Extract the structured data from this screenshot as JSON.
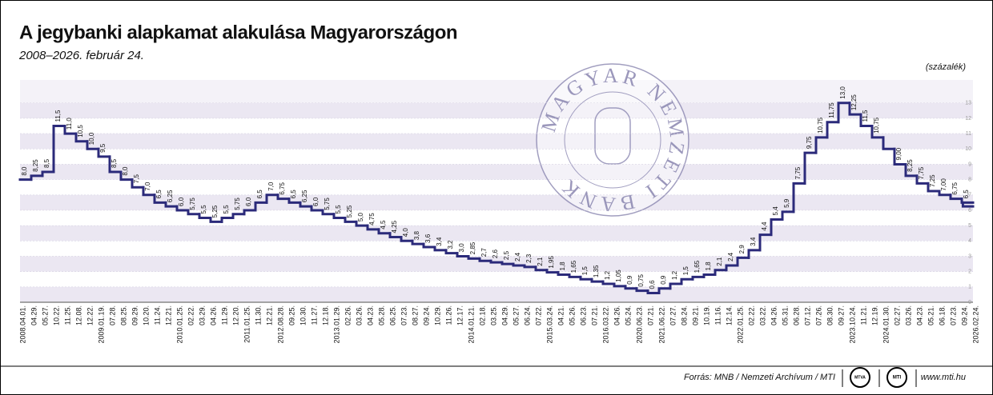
{
  "chart_data": {
    "type": "step",
    "title": "A jegybanki alapkamat alakulása Magyarországon",
    "subtitle": "2008–2026. február 24.",
    "unit_label": "(százalék)",
    "source": "Forrás: MNB / Nemzeti Archívum / MTI",
    "logos": [
      "MTVA",
      "MTI"
    ],
    "website": "www.mti.hu",
    "watermark": "MAGYAR NEMZETI BANK",
    "color": "#2b2a7a",
    "grid": true,
    "ylim": [
      0,
      14.5
    ],
    "yticks": [
      0,
      1,
      2,
      3,
      4,
      5,
      6,
      7,
      8,
      9,
      10,
      11,
      12,
      13
    ],
    "categories": [
      "2008.04.01.",
      "04.29.",
      "05.27.",
      "10.22.",
      "11.25.",
      "12.08.",
      "12.22.",
      "2009.01.19.",
      "07.28.",
      "08.25.",
      "09.29.",
      "10.20.",
      "11.24.",
      "12.21.",
      "2010.01.25.",
      "02.22.",
      "03.29.",
      "04.26.",
      "11.29.",
      "12.20.",
      "2011.01.25.",
      "11.30.",
      "12.21.",
      "2012.08.28.",
      "09.25.",
      "10.30.",
      "11.27.",
      "12.18.",
      "2013.01.29.",
      "02.26.",
      "03.26.",
      "04.23.",
      "05.28.",
      "06.25.",
      "07.23.",
      "08.27.",
      "09.24.",
      "10.29.",
      "11.26.",
      "12.17.",
      "2014.01.21.",
      "02.18.",
      "03.25.",
      "04.29.",
      "05.27.",
      "06.24.",
      "07.22.",
      "2015.03.24.",
      "04.21.",
      "05.26.",
      "06.23.",
      "07.21.",
      "2016.03.22.",
      "04.26.",
      "05.24.",
      "2020.06.23.",
      "07.21.",
      "2021.06.22.",
      "07.27.",
      "08.24.",
      "09.21.",
      "10.19.",
      "11.16.",
      "12.14.",
      "2022.01.25.",
      "02.22.",
      "03.22.",
      "04.26.",
      "05.31.",
      "06.28.",
      "07.12.",
      "07.26.",
      "08.30.",
      "09.27.",
      "2023.10.24.",
      "11.21.",
      "12.19.",
      "2024.01.30.",
      "02.27.",
      "03.26.",
      "04.23.",
      "05.21.",
      "06.18.",
      "07.23.",
      "09.24.",
      "2026.02.24."
    ],
    "values": [
      8.0,
      8.25,
      8.5,
      11.5,
      11.0,
      10.5,
      10.0,
      9.5,
      8.5,
      8.0,
      7.5,
      7.0,
      6.5,
      6.25,
      6.0,
      5.75,
      5.5,
      5.25,
      5.5,
      5.75,
      6.0,
      6.5,
      7.0,
      6.75,
      6.5,
      6.25,
      6.0,
      5.75,
      5.5,
      5.25,
      5.0,
      4.75,
      4.5,
      4.25,
      4.0,
      3.8,
      3.6,
      3.4,
      3.2,
      3.0,
      2.85,
      2.7,
      2.6,
      2.5,
      2.4,
      2.3,
      2.1,
      1.95,
      1.8,
      1.65,
      1.5,
      1.35,
      1.2,
      1.05,
      0.9,
      0.75,
      0.6,
      0.9,
      1.2,
      1.5,
      1.65,
      1.8,
      2.1,
      2.4,
      2.9,
      3.4,
      4.4,
      5.4,
      5.9,
      7.75,
      9.75,
      10.75,
      11.75,
      13.0,
      12.25,
      11.5,
      10.75,
      10.0,
      9.0,
      8.25,
      7.75,
      7.25,
      7.0,
      6.75,
      6.5,
      6.25
    ],
    "value_labels": [
      "8,0",
      "8,25",
      "8,5",
      "11,5",
      "11,0",
      "10,5",
      "10,0",
      "9,5",
      "8,5",
      "8,0",
      "7,5",
      "7,0",
      "6,5",
      "6,25",
      "6,0",
      "5,75",
      "5,5",
      "5,25",
      "5,5",
      "5,75",
      "6,0",
      "6,5",
      "7,0",
      "6,75",
      "6,5",
      "6,25",
      "6,0",
      "5,75",
      "5,5",
      "5,25",
      "5,0",
      "4,75",
      "4,5",
      "4,25",
      "4,0",
      "3,8",
      "3,6",
      "3,4",
      "3,2",
      "3,0",
      "2,85",
      "2,7",
      "2,6",
      "2,5",
      "2,4",
      "2,3",
      "2,1",
      "1,95",
      "1,8",
      "1,65",
      "1,5",
      "1,35",
      "1,2",
      "1,05",
      "0,9",
      "0,75",
      "0,6",
      "0,9",
      "1,2",
      "1,5",
      "1,65",
      "1,8",
      "2,1",
      "2,4",
      "2,9",
      "3,4",
      "4,4",
      "5,4",
      "5,9",
      "7,75",
      "9,75",
      "10,75",
      "11,75",
      "13,0",
      "12,25",
      "11,5",
      "10,75",
      null,
      "9,00",
      "8,25",
      "7,75",
      "7,25",
      "7,00",
      "6,75",
      "6,5",
      null
    ]
  }
}
